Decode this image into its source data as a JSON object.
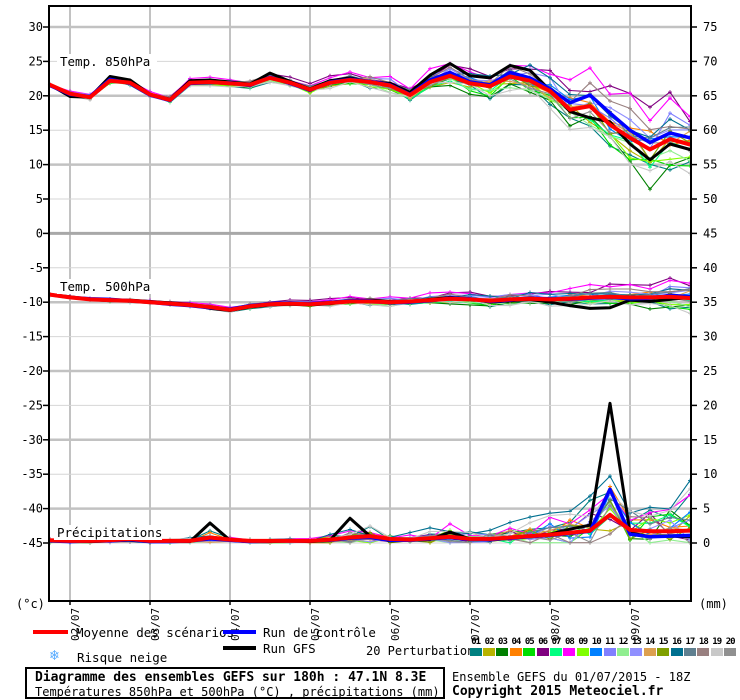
{
  "axes": {
    "left_unit": "(°c)",
    "right_unit": "(mm)",
    "left_ticks": [
      "30",
      "25",
      "20",
      "15",
      "10",
      "5",
      "0",
      "-5",
      "-10",
      "-15",
      "-20",
      "-25",
      "-30",
      "-35",
      "-40",
      "-45"
    ],
    "right_ticks": [
      "75",
      "70",
      "65",
      "60",
      "55",
      "50",
      "45",
      "40",
      "35",
      "30",
      "25",
      "20",
      "15",
      "10",
      "5",
      "0"
    ],
    "date_labels": [
      "02/07",
      "03/07",
      "04/07",
      "05/07",
      "06/07",
      "07/07",
      "08/07",
      "09/07"
    ]
  },
  "panels": {
    "t850_label": "Temp. 850hPa",
    "t500_label": "Temp. 500hPa",
    "precip_label": "Précipitations"
  },
  "legend": {
    "mean_label": "Moyenne des scénarios",
    "control_label": "Run de contrôle",
    "gfs_label": "Run GFS",
    "perturbations_label": "20 Perturbations",
    "snow_label": "Risque neige",
    "snow_icon": "❄",
    "pert_numbers": [
      "01",
      "02",
      "03",
      "04",
      "05",
      "06",
      "07",
      "08",
      "09",
      "10",
      "11",
      "12",
      "13",
      "14",
      "15",
      "16",
      "17",
      "18",
      "19",
      "20"
    ]
  },
  "footer": {
    "title": "Diagramme des ensembles GEFS sur 180h : 47.1N 8.3E",
    "subtitle": "Températures 850hPa et 500hPa (°C) , précipitations (mm)",
    "run_info": "Ensemble GEFS du 01/07/2015 - 18Z",
    "copyright": "Copyright 2015 Meteociel.fr"
  },
  "colors": {
    "mean": "#ff0000",
    "control": "#0000ff",
    "gfs": "#000000",
    "snow_icon": "#55aaff",
    "grid_thin": "#d6d6d6",
    "grid_thick": "#c2c2c2",
    "grid_zero": "#a8a8a8",
    "pert_colors": [
      "#008080",
      "#b8b400",
      "#008000",
      "#ff8000",
      "#00dd00",
      "#800080",
      "#00ff80",
      "#ff00ff",
      "#80ff00",
      "#0080ff",
      "#8080ff",
      "#90ee90",
      "#9090ff",
      "#dda050",
      "#80a000",
      "#007090",
      "#608090",
      "#998080",
      "#c8c8c8",
      "#909090"
    ]
  },
  "chart_data": {
    "type": "line",
    "title": "Diagramme des ensembles GEFS sur 180h : 47.1N 8.3E",
    "x_start": "01/07 18Z",
    "x_step_hours": 6,
    "n_points": 33,
    "date_labels": [
      "02/07",
      "03/07",
      "04/07",
      "05/07",
      "06/07",
      "07/07",
      "08/07",
      "09/07"
    ],
    "ylim_left_celsius": [
      -45,
      30
    ],
    "ylim_right_mm": [
      0,
      75
    ],
    "grid": "on",
    "legend_position": "bottom",
    "series": {
      "t850": {
        "units": "°C",
        "mean": [
          21.6,
          20.3,
          19.8,
          22.2,
          21.9,
          20.2,
          19.4,
          21.9,
          22.0,
          21.8,
          21.6,
          22.6,
          21.9,
          20.9,
          21.9,
          22.3,
          22.0,
          21.5,
          20.1,
          22.0,
          22.9,
          21.8,
          21.4,
          22.8,
          22.2,
          20.7,
          18.0,
          18.5,
          15.8,
          13.9,
          12.2,
          13.7,
          12.9
        ],
        "control": [
          21.5,
          20.2,
          19.9,
          22.4,
          21.8,
          20.1,
          19.3,
          21.8,
          21.9,
          21.9,
          21.5,
          22.7,
          21.8,
          20.8,
          22.0,
          22.4,
          22.1,
          21.6,
          20.2,
          22.3,
          23.4,
          22.0,
          21.6,
          23.4,
          22.6,
          21.0,
          19.0,
          20.1,
          17.5,
          15.0,
          13.2,
          14.6,
          13.9
        ],
        "gfs": [
          21.6,
          19.9,
          19.8,
          22.8,
          22.3,
          20.2,
          19.5,
          22.2,
          22.3,
          22.0,
          21.7,
          23.3,
          22.1,
          21.0,
          22.2,
          22.6,
          22.0,
          21.8,
          20.5,
          23.0,
          24.7,
          22.9,
          22.6,
          24.4,
          23.7,
          20.8,
          17.7,
          16.8,
          16.2,
          13.0,
          10.7,
          13.0,
          12.2
        ],
        "spread": [
          0.15,
          0.4,
          0.5,
          0.5,
          0.5,
          0.5,
          0.5,
          0.6,
          0.6,
          0.6,
          0.6,
          0.7,
          0.7,
          0.7,
          0.8,
          0.8,
          0.9,
          1.0,
          1.1,
          1.2,
          1.3,
          1.4,
          1.6,
          1.8,
          2.0,
          2.3,
          2.6,
          3.0,
          3.4,
          4.2,
          4.5,
          3.8,
          3.2
        ]
      },
      "t500": {
        "units": "°C",
        "mean": [
          -8.9,
          -9.3,
          -9.6,
          -9.7,
          -9.8,
          -10.0,
          -10.2,
          -10.4,
          -10.7,
          -11.1,
          -10.6,
          -10.3,
          -10.2,
          -10.3,
          -10.1,
          -9.9,
          -9.9,
          -10.0,
          -9.9,
          -9.7,
          -9.5,
          -9.6,
          -9.8,
          -9.6,
          -9.5,
          -9.6,
          -9.5,
          -9.3,
          -9.2,
          -9.3,
          -9.3,
          -9.2,
          -9.4
        ],
        "control": [
          -8.9,
          -9.3,
          -9.5,
          -9.6,
          -9.8,
          -10.0,
          -10.3,
          -10.5,
          -10.8,
          -11.0,
          -10.5,
          -10.2,
          -10.1,
          -10.2,
          -10.0,
          -9.8,
          -9.8,
          -10.1,
          -10.0,
          -9.8,
          -9.4,
          -9.5,
          -9.9,
          -9.7,
          -9.4,
          -9.5,
          -9.6,
          -9.4,
          -9.3,
          -9.5,
          -9.4,
          -9.0,
          -9.2
        ],
        "gfs": [
          -8.9,
          -9.2,
          -9.6,
          -9.8,
          -9.7,
          -9.9,
          -10.1,
          -10.3,
          -10.9,
          -11.2,
          -10.7,
          -10.4,
          -10.3,
          -10.4,
          -10.2,
          -9.8,
          -9.7,
          -9.9,
          -10.0,
          -9.6,
          -9.3,
          -9.5,
          -10.0,
          -9.8,
          -9.6,
          -10.0,
          -10.5,
          -10.9,
          -10.8,
          -9.7,
          -9.9,
          -9.6,
          -9.3
        ],
        "spread": [
          0.1,
          0.2,
          0.2,
          0.25,
          0.3,
          0.3,
          0.3,
          0.35,
          0.35,
          0.4,
          0.4,
          0.4,
          0.45,
          0.45,
          0.5,
          0.5,
          0.55,
          0.6,
          0.6,
          0.65,
          0.7,
          0.7,
          0.75,
          0.8,
          0.8,
          0.9,
          0.9,
          1.0,
          1.1,
          1.2,
          1.3,
          1.5,
          1.7
        ]
      },
      "precip": {
        "units": "mm",
        "mean": [
          0.4,
          0.3,
          0.3,
          0.4,
          0.6,
          0.3,
          0.3,
          0.3,
          0.8,
          0.5,
          0.3,
          0.3,
          0.3,
          0.3,
          0.5,
          0.8,
          1.0,
          0.6,
          0.5,
          0.7,
          0.9,
          0.6,
          0.6,
          0.8,
          1.0,
          1.2,
          1.5,
          1.8,
          4.1,
          1.9,
          1.7,
          1.7,
          1.8
        ],
        "control": [
          0.3,
          0.2,
          0.3,
          0.3,
          0.5,
          0.2,
          0.2,
          0.3,
          0.6,
          0.4,
          0.2,
          0.3,
          0.3,
          0.3,
          0.4,
          0.7,
          0.8,
          0.4,
          0.4,
          0.6,
          0.8,
          0.5,
          0.5,
          0.7,
          0.9,
          1.1,
          1.4,
          1.7,
          7.8,
          1.3,
          0.9,
          1.0,
          1.1
        ],
        "gfs": [
          0.3,
          0.2,
          0.2,
          0.3,
          0.4,
          0.2,
          0.2,
          0.2,
          2.9,
          0.4,
          0.2,
          0.2,
          0.3,
          0.2,
          0.4,
          3.6,
          1.0,
          0.3,
          0.4,
          0.5,
          1.6,
          0.6,
          0.4,
          0.7,
          1.0,
          1.3,
          2.0,
          2.6,
          20.3,
          1.5,
          0.9,
          1.0,
          0.9
        ],
        "spread": [
          0.25,
          0.2,
          0.3,
          0.3,
          0.5,
          0.3,
          0.3,
          0.3,
          0.7,
          0.4,
          0.3,
          0.3,
          0.3,
          0.3,
          0.5,
          0.8,
          0.9,
          0.5,
          0.5,
          0.7,
          1.0,
          0.7,
          0.7,
          1.0,
          1.2,
          1.5,
          1.8,
          2.2,
          3.0,
          2.0,
          2.2,
          2.6,
          3.2
        ]
      }
    },
    "member_tendency_temp": [
      -0.9,
      -0.3,
      -1.0,
      0.3,
      -0.6,
      1.3,
      -0.4,
      1.5,
      -0.5,
      0.2,
      0.6,
      -0.7,
      0.5,
      0.1,
      -0.2,
      0.8,
      0.4,
      0.7,
      -0.8,
      -0.1
    ],
    "member_tendency_precip": [
      1.5,
      0.3,
      0.6,
      0.8,
      0.4,
      0.7,
      0.5,
      2.0,
      0.4,
      0.5,
      0.6,
      -0.2,
      0.3,
      0.9,
      0.5,
      2.5,
      0.6,
      0.4,
      1.8,
      0.3
    ]
  }
}
